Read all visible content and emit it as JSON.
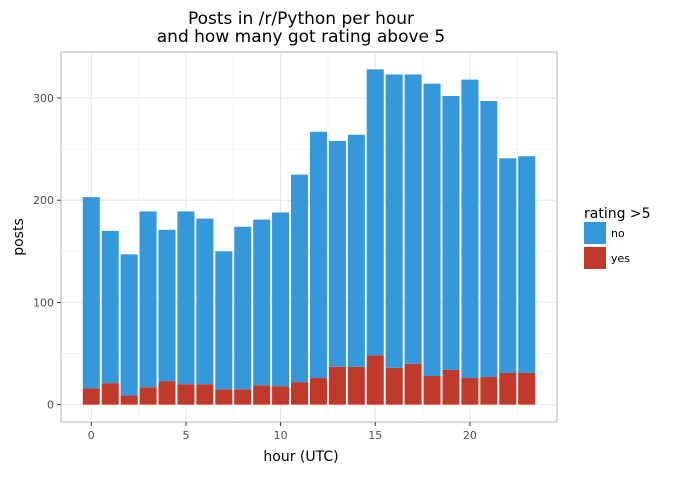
{
  "chart_data": {
    "type": "bar",
    "stacked": true,
    "title_lines": [
      "Posts in /r/Python per hour",
      "and how many got rating above 5"
    ],
    "xlabel": "hour (UTC)",
    "ylabel": "posts",
    "x": [
      0,
      1,
      2,
      3,
      4,
      5,
      6,
      7,
      8,
      9,
      10,
      11,
      12,
      13,
      14,
      15,
      16,
      17,
      18,
      19,
      20,
      21,
      22,
      23
    ],
    "xticks": [
      0,
      5,
      10,
      15,
      20
    ],
    "yticks": [
      0,
      100,
      200,
      300
    ],
    "xlim": [
      -1.6,
      24.6
    ],
    "ylim": [
      -17,
      345
    ],
    "grid": true,
    "legend": {
      "title": "rating >5",
      "position": "right"
    },
    "series": [
      {
        "name": "yes",
        "color": "#c0392b",
        "values": [
          16,
          21,
          9,
          17,
          23,
          20,
          20,
          15,
          15,
          19,
          18,
          22,
          26,
          37,
          37,
          48,
          36,
          40,
          28,
          34,
          26,
          27,
          31,
          31
        ]
      },
      {
        "name": "no",
        "color": "#3498db",
        "values": [
          187,
          149,
          138,
          172,
          148,
          169,
          162,
          135,
          159,
          162,
          170,
          203,
          241,
          221,
          227,
          280,
          287,
          283,
          286,
          268,
          292,
          270,
          210,
          212
        ]
      }
    ]
  }
}
